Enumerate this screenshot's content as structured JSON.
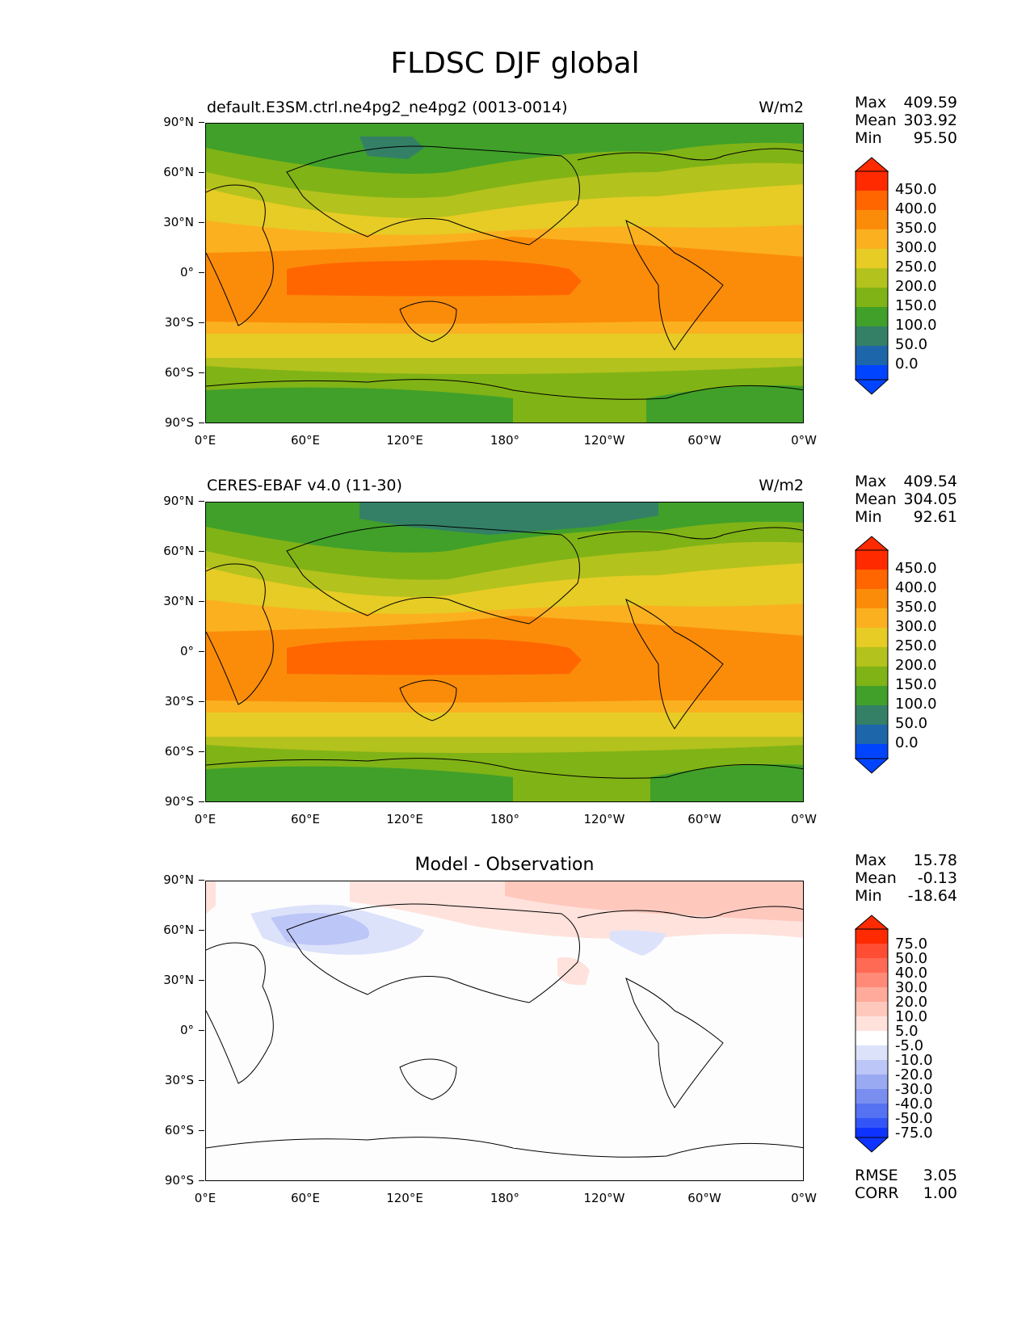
{
  "figure_title": "FLDSC DJF global",
  "panels": [
    {
      "left_title": "default.E3SM.ctrl.ne4pg2_ne4pg2 (0013-0014)",
      "right_title": "W/m2",
      "stats": {
        "max_label": "Max",
        "max": "409.59",
        "mean_label": "Mean",
        "mean": "303.92",
        "min_label": "Min",
        "min": "95.50"
      }
    },
    {
      "left_title": "CERES-EBAF v4.0 (11-30)",
      "right_title": "W/m2",
      "stats": {
        "max_label": "Max",
        "max": "409.54",
        "mean_label": "Mean",
        "mean": "304.05",
        "min_label": "Min",
        "min": "92.61"
      }
    },
    {
      "center_title": "Model - Observation",
      "stats": {
        "max_label": "Max",
        "max": "15.78",
        "mean_label": "Mean",
        "mean": "-0.13",
        "min_label": "Min",
        "min": "-18.64"
      },
      "metrics": {
        "rmse_label": "RMSE",
        "rmse": "3.05",
        "corr_label": "CORR",
        "corr": "1.00"
      }
    }
  ],
  "axes": {
    "y_ticks": [
      "90°N",
      "60°N",
      "30°N",
      "0°",
      "30°S",
      "60°S",
      "90°S"
    ],
    "x_ticks": [
      "0°E",
      "60°E",
      "120°E",
      "180°",
      "120°W",
      "60°W",
      "0°W"
    ]
  },
  "colorbar_main": {
    "labels": [
      "450.0",
      "400.0",
      "350.0",
      "300.0",
      "250.0",
      "200.0",
      "150.0",
      "100.0",
      "50.0",
      "0.0"
    ],
    "colors": [
      "#ff2a00",
      "#ff6600",
      "#fb8c0a",
      "#fbb020",
      "#e6cc25",
      "#b3c21d",
      "#80b316",
      "#40a02a",
      "#338066",
      "#1e66aa",
      "#0044ff"
    ]
  },
  "colorbar_diff": {
    "labels": [
      "75.0",
      "50.0",
      "40.0",
      "30.0",
      "20.0",
      "10.0",
      "5.0",
      "-5.0",
      "-10.0",
      "-20.0",
      "-30.0",
      "-40.0",
      "-50.0",
      "-75.0"
    ],
    "colors": [
      "#ff2a00",
      "#ff4d33",
      "#ff6a55",
      "#ff8a78",
      "#ffaa9a",
      "#ffc8bd",
      "#ffe2dc",
      "#ffffff",
      "#dde2fb",
      "#bcc6f7",
      "#9aaaf2",
      "#7a8ef0",
      "#5572f2",
      "#3354f7",
      "#0f33ff"
    ]
  },
  "chart_data": [
    {
      "type": "heatmap",
      "title": "default.E3SM.ctrl.ne4pg2_ne4pg2 (0013-0014)",
      "units": "W/m2",
      "latitude_bands": [
        {
          "lat_range": [
            60,
            90
          ],
          "value_range": [
            100,
            150
          ]
        },
        {
          "lat_range": [
            40,
            60
          ],
          "value_range": [
            150,
            250
          ]
        },
        {
          "lat_range": [
            20,
            40
          ],
          "value_range": [
            250,
            350
          ]
        },
        {
          "lat_range": [
            -20,
            20
          ],
          "value_range": [
            350,
            450
          ]
        },
        {
          "lat_range": [
            -40,
            -20
          ],
          "value_range": [
            300,
            350
          ]
        },
        {
          "lat_range": [
            -60,
            -40
          ],
          "value_range": [
            200,
            300
          ]
        },
        {
          "lat_range": [
            -90,
            -60
          ],
          "value_range": [
            100,
            200
          ]
        }
      ],
      "max": 409.59,
      "mean": 303.92,
      "min": 95.5
    },
    {
      "type": "heatmap",
      "title": "CERES-EBAF v4.0 (11-30)",
      "units": "W/m2",
      "max": 409.54,
      "mean": 304.05,
      "min": 92.61
    },
    {
      "type": "heatmap",
      "title": "Model - Observation",
      "max": 15.78,
      "mean": -0.13,
      "min": -18.64,
      "rmse": 3.05,
      "corr": 1.0
    }
  ]
}
